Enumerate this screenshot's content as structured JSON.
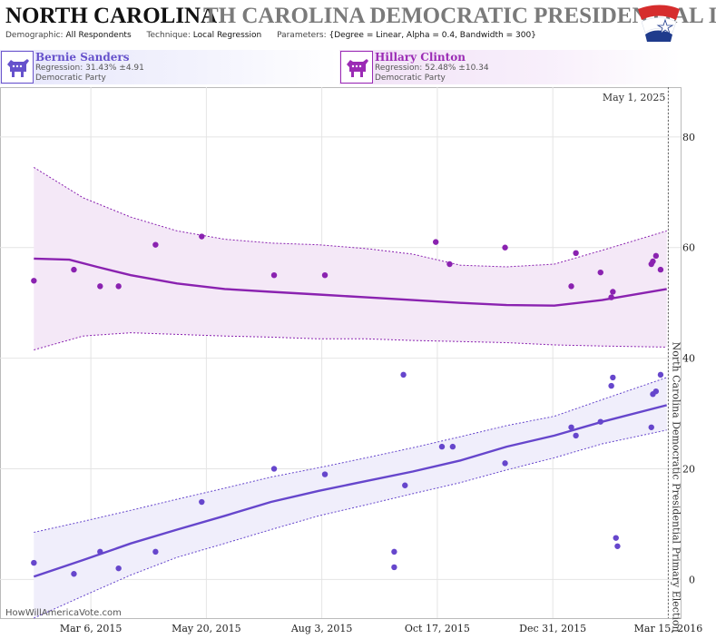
{
  "header": {
    "title": "NORTH CAROLINA",
    "title_ghost": "TH CAROLINA DEMOCRATIC PRESIDENTIAL I",
    "demographic_label": "Demographic:",
    "demographic_value": "All Respondents",
    "technique_label": "Technique:",
    "technique_value": "Local Regression",
    "parameters_label": "Parameters:",
    "parameters_value": "{Degree = Linear, Alpha = 0.4, Bandwidth = 300}"
  },
  "candidates": [
    {
      "name": "Bernie Sanders",
      "regression": "Regression: 31.43% ±4.91",
      "party": "Democratic Party",
      "color": "#6652cc"
    },
    {
      "name": "Hillary Clinton",
      "regression": "Regression: 52.48% ±10.34",
      "party": "Democratic Party",
      "color": "#9b2bb5"
    }
  ],
  "watermark": "HowWillAmericaVote.com",
  "chart_data": {
    "type": "scatter",
    "date_label": "May 1, 2025",
    "vertical_label": "North Carolina Democratic Presidential Primary Election",
    "xlim": [
      "2015-01-06",
      "2016-03-23"
    ],
    "ylim": [
      -7,
      89
    ],
    "y_ticks": [
      0,
      20,
      40,
      60,
      80
    ],
    "x_ticks": [
      {
        "date": "2015-03-06",
        "label": "Mar 6, 2015"
      },
      {
        "date": "2015-05-20",
        "label": "May 20, 2015"
      },
      {
        "date": "2015-08-03",
        "label": "Aug 3, 2015"
      },
      {
        "date": "2015-10-17",
        "label": "Oct 17, 2015"
      },
      {
        "date": "2015-12-31",
        "label": "Dec 31, 2015"
      },
      {
        "date": "2016-03-15",
        "label": "Mar 15, 2016"
      }
    ],
    "election_date": "2016-03-15",
    "grid": true,
    "series": [
      {
        "name": "Hillary Clinton",
        "color": "#8a22b0",
        "band_fill": "#f4e8f7",
        "points": [
          [
            "2015-01-28",
            54
          ],
          [
            "2015-02-23",
            56
          ],
          [
            "2015-03-12",
            53
          ],
          [
            "2015-03-24",
            53
          ],
          [
            "2015-04-17",
            60.5
          ],
          [
            "2015-05-17",
            62
          ],
          [
            "2015-07-03",
            55
          ],
          [
            "2015-08-05",
            55
          ],
          [
            "2015-10-16",
            61
          ],
          [
            "2015-10-25",
            57
          ],
          [
            "2015-11-30",
            60
          ],
          [
            "2016-01-12",
            53
          ],
          [
            "2016-01-15",
            59
          ],
          [
            "2016-01-31",
            55.5
          ],
          [
            "2016-02-07",
            51
          ],
          [
            "2016-02-08",
            52
          ],
          [
            "2016-03-04",
            57
          ],
          [
            "2016-03-05",
            57.5
          ],
          [
            "2016-03-07",
            58.5
          ],
          [
            "2016-03-10",
            56
          ]
        ],
        "trend": [
          [
            "2015-01-28",
            58
          ],
          [
            "2015-02-20",
            57.8
          ],
          [
            "2015-03-10",
            56.5
          ],
          [
            "2015-04-01",
            55
          ],
          [
            "2015-05-01",
            53.5
          ],
          [
            "2015-06-01",
            52.5
          ],
          [
            "2015-07-01",
            52
          ],
          [
            "2015-08-01",
            51.5
          ],
          [
            "2015-09-01",
            51
          ],
          [
            "2015-10-01",
            50.5
          ],
          [
            "2015-11-01",
            50
          ],
          [
            "2015-12-01",
            49.6
          ],
          [
            "2016-01-01",
            49.5
          ],
          [
            "2016-02-01",
            50.5
          ],
          [
            "2016-03-14",
            52.5
          ]
        ],
        "upper": [
          [
            "2015-01-28",
            74.5
          ],
          [
            "2015-03-01",
            69
          ],
          [
            "2015-04-01",
            65.5
          ],
          [
            "2015-05-01",
            63
          ],
          [
            "2015-06-01",
            61.5
          ],
          [
            "2015-07-01",
            60.8
          ],
          [
            "2015-08-01",
            60.5
          ],
          [
            "2015-09-01",
            59.8
          ],
          [
            "2015-10-01",
            58.8
          ],
          [
            "2015-11-01",
            56.8
          ],
          [
            "2015-12-01",
            56.5
          ],
          [
            "2016-01-01",
            57
          ],
          [
            "2016-02-01",
            59.5
          ],
          [
            "2016-03-14",
            63
          ]
        ],
        "lower": [
          [
            "2015-01-28",
            41.5
          ],
          [
            "2015-03-01",
            44
          ],
          [
            "2015-04-01",
            44.6
          ],
          [
            "2015-05-01",
            44.3
          ],
          [
            "2015-06-01",
            44
          ],
          [
            "2015-07-01",
            43.8
          ],
          [
            "2015-08-01",
            43.5
          ],
          [
            "2015-09-01",
            43.5
          ],
          [
            "2015-10-01",
            43.2
          ],
          [
            "2015-11-01",
            43
          ],
          [
            "2015-12-01",
            42.8
          ],
          [
            "2016-01-01",
            42.4
          ],
          [
            "2016-02-01",
            42.2
          ],
          [
            "2016-03-14",
            42
          ]
        ]
      },
      {
        "name": "Bernie Sanders",
        "color": "#6646cc",
        "band_fill": "#f0eefb",
        "points": [
          [
            "2015-01-28",
            3
          ],
          [
            "2015-02-23",
            1
          ],
          [
            "2015-03-12",
            5
          ],
          [
            "2015-03-24",
            2
          ],
          [
            "2015-04-17",
            5
          ],
          [
            "2015-05-17",
            14
          ],
          [
            "2015-07-03",
            20
          ],
          [
            "2015-08-05",
            19
          ],
          [
            "2015-09-19",
            5
          ],
          [
            "2015-09-19",
            2.2
          ],
          [
            "2015-09-25",
            37
          ],
          [
            "2015-09-26",
            17
          ],
          [
            "2015-10-20",
            24
          ],
          [
            "2015-10-27",
            24
          ],
          [
            "2015-11-30",
            21
          ],
          [
            "2016-01-12",
            27.5
          ],
          [
            "2016-01-15",
            26
          ],
          [
            "2016-01-31",
            28.5
          ],
          [
            "2016-02-07",
            35
          ],
          [
            "2016-02-08",
            36.5
          ],
          [
            "2016-02-10",
            7.5
          ],
          [
            "2016-02-11",
            6
          ],
          [
            "2016-03-04",
            27.5
          ],
          [
            "2016-03-05",
            33.5
          ],
          [
            "2016-03-07",
            34
          ],
          [
            "2016-03-10",
            37
          ]
        ],
        "trend": [
          [
            "2015-01-28",
            0.5
          ],
          [
            "2015-03-01",
            3.5
          ],
          [
            "2015-04-01",
            6.5
          ],
          [
            "2015-05-01",
            9
          ],
          [
            "2015-06-01",
            11.5
          ],
          [
            "2015-07-01",
            14
          ],
          [
            "2015-08-01",
            16
          ],
          [
            "2015-09-01",
            17.8
          ],
          [
            "2015-10-01",
            19.5
          ],
          [
            "2015-11-01",
            21.5
          ],
          [
            "2015-12-01",
            24
          ],
          [
            "2016-01-01",
            26
          ],
          [
            "2016-02-01",
            28.5
          ],
          [
            "2016-03-14",
            31.5
          ]
        ],
        "upper": [
          [
            "2015-01-28",
            8.5
          ],
          [
            "2015-03-01",
            10.5
          ],
          [
            "2015-04-01",
            12.5
          ],
          [
            "2015-05-01",
            14.5
          ],
          [
            "2015-06-01",
            16.5
          ],
          [
            "2015-07-01",
            18.5
          ],
          [
            "2015-08-01",
            20.2
          ],
          [
            "2015-09-01",
            22
          ],
          [
            "2015-10-01",
            23.8
          ],
          [
            "2015-11-01",
            25.8
          ],
          [
            "2015-12-01",
            27.8
          ],
          [
            "2016-01-01",
            29.5
          ],
          [
            "2016-02-01",
            32.5
          ],
          [
            "2016-03-14",
            36.5
          ]
        ],
        "lower": [
          [
            "2015-01-28",
            -7
          ],
          [
            "2015-03-01",
            -3
          ],
          [
            "2015-04-01",
            0.8
          ],
          [
            "2015-05-01",
            4
          ],
          [
            "2015-06-01",
            6.5
          ],
          [
            "2015-07-01",
            9
          ],
          [
            "2015-08-01",
            11.5
          ],
          [
            "2015-09-01",
            13.5
          ],
          [
            "2015-10-01",
            15.5
          ],
          [
            "2015-11-01",
            17.5
          ],
          [
            "2015-12-01",
            19.8
          ],
          [
            "2016-01-01",
            22
          ],
          [
            "2016-02-01",
            24.5
          ],
          [
            "2016-03-14",
            27
          ]
        ]
      }
    ]
  }
}
